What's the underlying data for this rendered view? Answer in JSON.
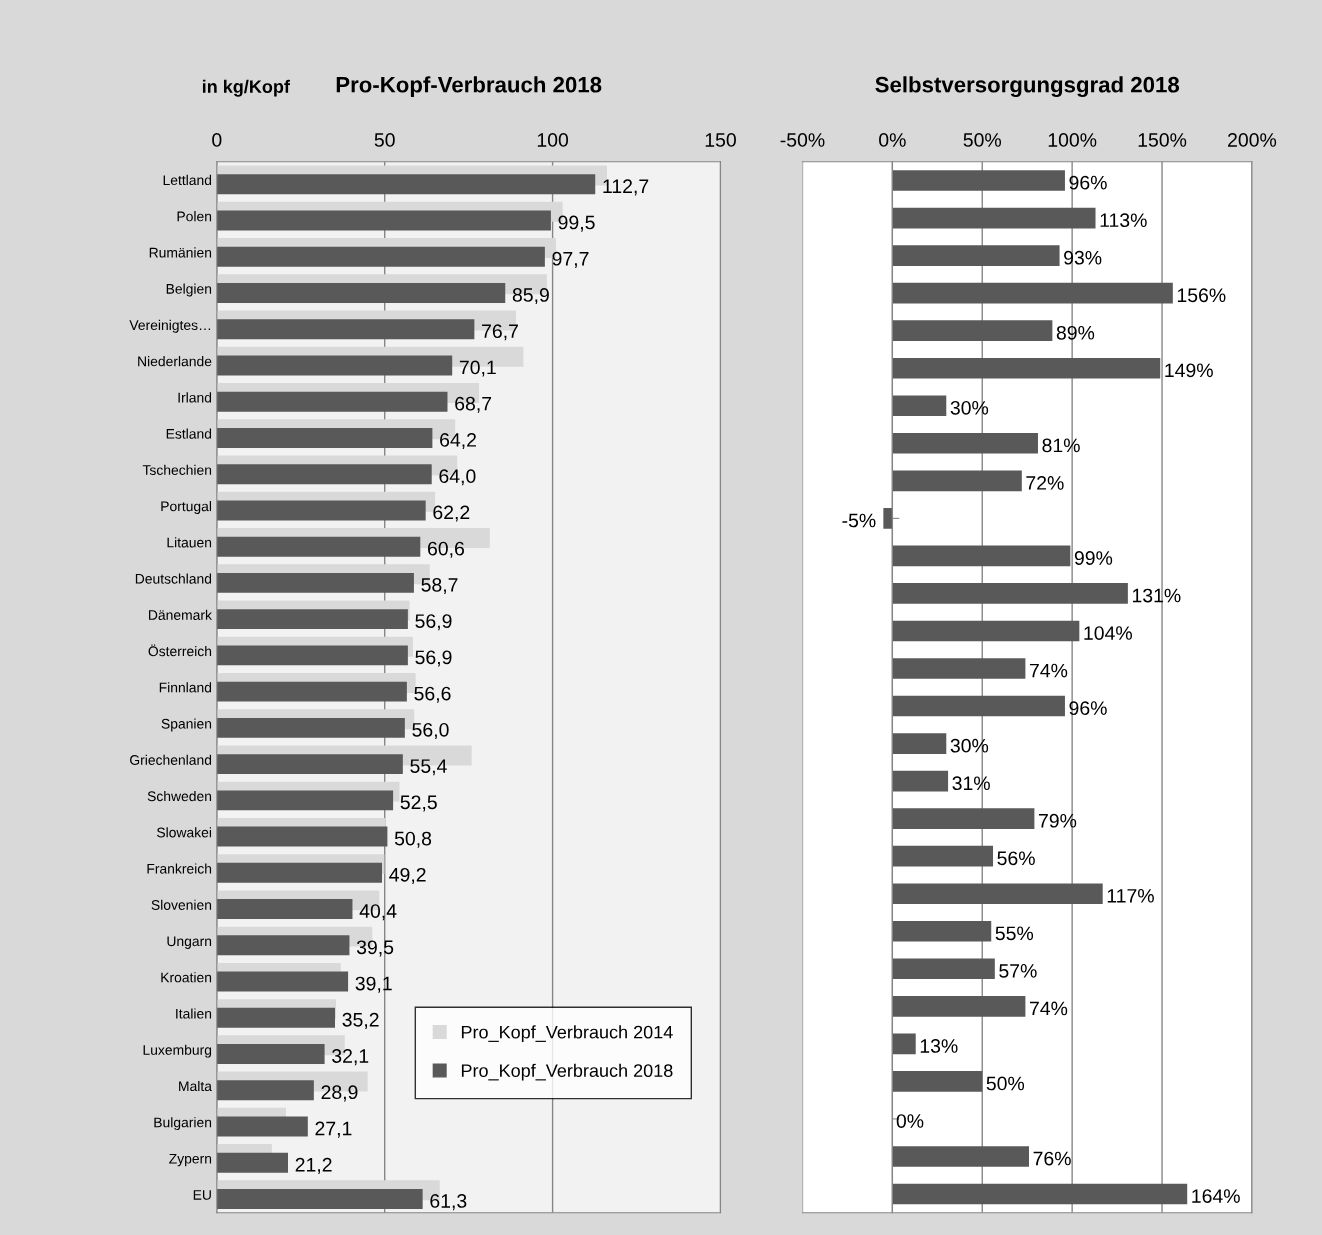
{
  "chart_data": [
    {
      "type": "bar",
      "orientation": "horizontal",
      "title": "Pro-Kopf-Verbrauch 2018",
      "subtitle": "in kg/Kopf",
      "categories": [
        "Lettland",
        "Polen",
        "Rumänien",
        "Belgien",
        "Vereinigtes…",
        "Niederlande",
        "Irland",
        "Estland",
        "Tschechien",
        "Portugal",
        "Litauen",
        "Deutschland",
        "Dänemark",
        "Österreich",
        "Finnland",
        "Spanien",
        "Griechenland",
        "Schweden",
        "Slowakei",
        "Frankreich",
        "Slovenien",
        "Ungarn",
        "Kroatien",
        "Italien",
        "Luxemburg",
        "Malta",
        "Bulgarien",
        "Zypern",
        "EU"
      ],
      "series": [
        {
          "name": "Pro_Kopf_Verbrauch 2014",
          "color": "#d9d9d9",
          "values": [
            116.2,
            103,
            101,
            98.3,
            89.1,
            91.3,
            78.1,
            71.0,
            71.6,
            65.0,
            81.3,
            63.4,
            57.4,
            58.4,
            59.2,
            58.8,
            75.9,
            54.4,
            50.2,
            49.9,
            48.4,
            46.3,
            36.9,
            35.5,
            38.1,
            44.9,
            20.6,
            16.4,
            66.4
          ]
        },
        {
          "name": "Pro_Kopf_Verbrauch 2018",
          "color": "#595959",
          "values": [
            112.7,
            99.5,
            97.7,
            85.9,
            76.7,
            70.1,
            68.7,
            64.2,
            64.0,
            62.2,
            60.6,
            58.7,
            56.9,
            56.9,
            56.6,
            56.0,
            55.4,
            52.5,
            50.8,
            49.2,
            40.4,
            39.5,
            39.1,
            35.2,
            32.1,
            28.9,
            27.1,
            21.2,
            61.3
          ],
          "value_labels": [
            "112,7",
            "99,5",
            "97,7",
            "85,9",
            "76,7",
            "70,1",
            "68,7",
            "64,2",
            "64,0",
            "62,2",
            "60,6",
            "58,7",
            "56,9",
            "56,9",
            "56,6",
            "56,0",
            "55,4",
            "52,5",
            "50,8",
            "49,2",
            "40,4",
            "39,5",
            "39,1",
            "35,2",
            "32,1",
            "28,9",
            "27,1",
            "21,2",
            "61,3"
          ]
        }
      ],
      "xlim": [
        0,
        150
      ],
      "xticks": [
        0,
        50,
        100,
        150
      ],
      "grid": "x",
      "legend": "bottom right"
    },
    {
      "type": "bar",
      "orientation": "horizontal",
      "title": "Selbstversorgungsgrad 2018",
      "categories": [
        null,
        null,
        null,
        null,
        null,
        null,
        null,
        null,
        null,
        null,
        null,
        null,
        null,
        null,
        null,
        null,
        null,
        null,
        null,
        null,
        null,
        null,
        null,
        null,
        null,
        null,
        null,
        null
      ],
      "series": [
        {
          "color": "#595959",
          "values": [
            96,
            113,
            93,
            156,
            89,
            149,
            30,
            81,
            72,
            -5,
            99,
            131,
            104,
            74,
            96,
            30,
            31,
            79,
            56,
            117,
            55,
            57,
            74,
            13,
            50,
            0,
            76,
            164
          ],
          "value_labels": [
            "96%",
            "113%",
            "93%",
            "156%",
            "89%",
            "149%",
            "30%",
            "81%",
            "72%",
            "-5%",
            "99%",
            "131%",
            "104%",
            "74%",
            "96%",
            "30%",
            "31%",
            "79%",
            "56%",
            "117%",
            "55%",
            "57%",
            "74%",
            "13%",
            "50%",
            "0%",
            "76%",
            "164%"
          ]
        }
      ],
      "xlim": [
        -50,
        200
      ],
      "xticks": [
        {
          "value": -50,
          "label": "-50%"
        },
        {
          "value": 0,
          "label": "0%"
        },
        {
          "value": 50,
          "label": "50%"
        },
        {
          "value": 100,
          "label": "100%"
        },
        {
          "value": 150,
          "label": "150%"
        },
        {
          "value": 200,
          "label": "200%"
        }
      ],
      "grid": "x",
      "tick_labels": "x"
    }
  ]
}
